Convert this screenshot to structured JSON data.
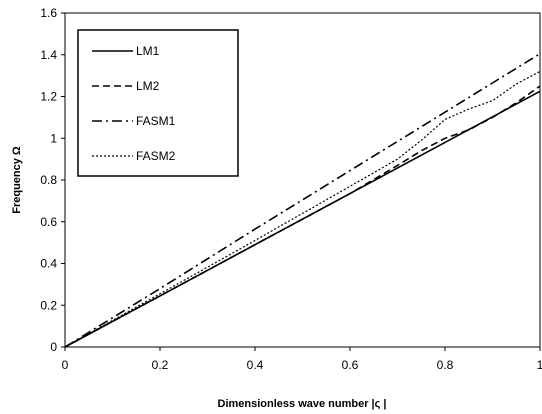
{
  "chart_data": {
    "type": "line",
    "title": "",
    "xlabel": "Dimensionless wave number |ς |",
    "ylabel": "Frequency Ω",
    "xlim": [
      0,
      1
    ],
    "ylim": [
      0,
      1.6
    ],
    "xticks": [
      "0",
      "0.2",
      "0.4",
      "0.6",
      "0.8",
      "1"
    ],
    "yticks": [
      "0",
      "0.2",
      "0.4",
      "0.6",
      "0.8",
      "1",
      "1.2",
      "1.4",
      "1.6"
    ],
    "grid": false,
    "legend_position": "top-left",
    "series": [
      {
        "name": "LM1",
        "style": "solid",
        "x": [
          0,
          0.2,
          0.4,
          0.6,
          0.8,
          1.0
        ],
        "y": [
          0,
          0.245,
          0.49,
          0.735,
          0.98,
          1.225
        ]
      },
      {
        "name": "LM2",
        "style": "dashed",
        "x": [
          0,
          0.2,
          0.4,
          0.6,
          0.7,
          0.75,
          0.8,
          0.85,
          0.9,
          0.95,
          1.0
        ],
        "y": [
          0,
          0.245,
          0.49,
          0.735,
          0.87,
          0.94,
          1.0,
          1.04,
          1.1,
          1.17,
          1.25
        ]
      },
      {
        "name": "FASM1",
        "style": "dash-dot",
        "x": [
          0,
          0.2,
          0.4,
          0.6,
          0.8,
          1.0
        ],
        "y": [
          0,
          0.28,
          0.565,
          0.845,
          1.125,
          1.405
        ]
      },
      {
        "name": "FASM2",
        "style": "dotted",
        "x": [
          0,
          0.2,
          0.4,
          0.6,
          0.7,
          0.75,
          0.8,
          0.85,
          0.9,
          0.95,
          1.0
        ],
        "y": [
          0,
          0.255,
          0.51,
          0.77,
          0.9,
          0.99,
          1.09,
          1.14,
          1.18,
          1.26,
          1.32
        ]
      }
    ]
  }
}
